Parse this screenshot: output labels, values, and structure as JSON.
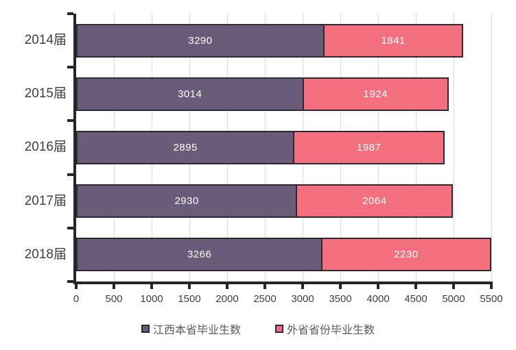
{
  "chart_data": {
    "type": "bar",
    "orientation": "horizontal",
    "stacked": true,
    "title": "",
    "xlabel": "",
    "ylabel": "",
    "categories": [
      "2014届",
      "2015届",
      "2016届",
      "2017届",
      "2018届"
    ],
    "series": [
      {
        "name": "江西本省毕业生数",
        "color": "#6a5c78",
        "values": [
          3290,
          3014,
          2895,
          2930,
          3266
        ]
      },
      {
        "name": "外省省份毕业生数",
        "color": "#f5707e",
        "values": [
          1841,
          1924,
          1987,
          2064,
          2230
        ]
      }
    ],
    "xlim": [
      0,
      5500
    ],
    "x_ticks": [
      0,
      500,
      1000,
      1500,
      2000,
      2500,
      3000,
      3500,
      4000,
      4500,
      5000,
      5500
    ],
    "grid": true,
    "legend_position": "bottom",
    "bar_label_color": "#ffffff",
    "bar_outline_color": "#2e2833",
    "axis_color": "#262626",
    "gridline_color": "#d9d9d9"
  }
}
